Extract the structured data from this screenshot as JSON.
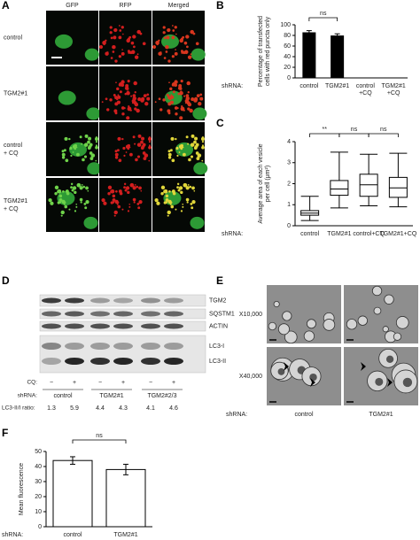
{
  "panel_a": {
    "label": "A",
    "columns": [
      "GFP",
      "RFP",
      "Merged"
    ],
    "rows": [
      [
        "control"
      ],
      [
        "TGM2#1"
      ],
      [
        "control",
        "+ CQ"
      ],
      [
        "TGM2#1",
        "+ CQ"
      ]
    ]
  },
  "chart_data": [
    {
      "type": "bar",
      "label": "B",
      "ylabel": [
        "Percentage of transfected",
        "cells with red puncta only"
      ],
      "axis_label": "shRNA:",
      "categories": [
        [
          "control"
        ],
        [
          "TGM2#1"
        ],
        [
          "control",
          "+CQ"
        ],
        [
          "TGM2#1",
          "+CQ"
        ]
      ],
      "values": [
        85,
        79,
        null,
        null
      ],
      "errors": [
        4,
        4,
        null,
        null
      ],
      "color": "#000000",
      "ylim": [
        0,
        100
      ],
      "yticks": [
        0,
        20,
        40,
        60,
        80,
        100
      ],
      "annotations": [
        "ns"
      ]
    },
    {
      "type": "box",
      "label": "C",
      "ylabel": [
        "Average area of each vesicle",
        "per cell (μm²)"
      ],
      "axis_label": "shRNA:",
      "categories": [
        [
          "control"
        ],
        [
          "TGM2#1"
        ],
        [
          "control+CQ"
        ],
        [
          "TGM2#1+CQ"
        ]
      ],
      "boxes": [
        {
          "min": 0.25,
          "q1": 0.5,
          "median": 0.6,
          "q3": 0.72,
          "max": 1.4
        },
        {
          "min": 0.85,
          "q1": 1.45,
          "median": 1.75,
          "q3": 2.15,
          "max": 3.5
        },
        {
          "min": 0.95,
          "q1": 1.4,
          "median": 1.95,
          "q3": 2.45,
          "max": 3.4
        },
        {
          "min": 0.9,
          "q1": 1.35,
          "median": 1.8,
          "q3": 2.3,
          "max": 3.45
        }
      ],
      "color": "#ffffff",
      "ylim": [
        0,
        4
      ],
      "yticks": [
        0,
        1,
        2,
        3,
        4
      ],
      "annotations": [
        "**",
        "ns",
        "ns"
      ]
    },
    {
      "type": "bar",
      "label": "F",
      "ylabel": [
        "Mean fluorescence"
      ],
      "axis_label": "shRNA:",
      "categories": [
        [
          "control"
        ],
        [
          "TGM2#1"
        ]
      ],
      "values": [
        44,
        38
      ],
      "errors": [
        2.5,
        3.5
      ],
      "color": "#ffffff",
      "ylim": [
        0,
        50
      ],
      "yticks": [
        0,
        10,
        20,
        30,
        40,
        50
      ],
      "annotations": [
        "ns"
      ]
    }
  ],
  "panel_d": {
    "label": "D",
    "bands": [
      "TGM2",
      "SQSTM1",
      "ACTIN",
      "LC3-I",
      "LC3-II"
    ],
    "cq_label": "CQ:",
    "cq": [
      "−",
      "+",
      "−",
      "+",
      "−",
      "+"
    ],
    "shrna_label": "shRNA:",
    "groups": [
      "control",
      "TGM2#1",
      "TGM2#2/3"
    ],
    "ratio_label": "LC3-II/I ratio:",
    "ratios": [
      1.3,
      5.9,
      4.4,
      4.3,
      4.1,
      4.6
    ]
  },
  "panel_e": {
    "label": "E",
    "rows": [
      "X10,000",
      "X40,000"
    ],
    "shrna_label": "shRNA:",
    "columns": [
      "control",
      "TGM2#1"
    ]
  }
}
